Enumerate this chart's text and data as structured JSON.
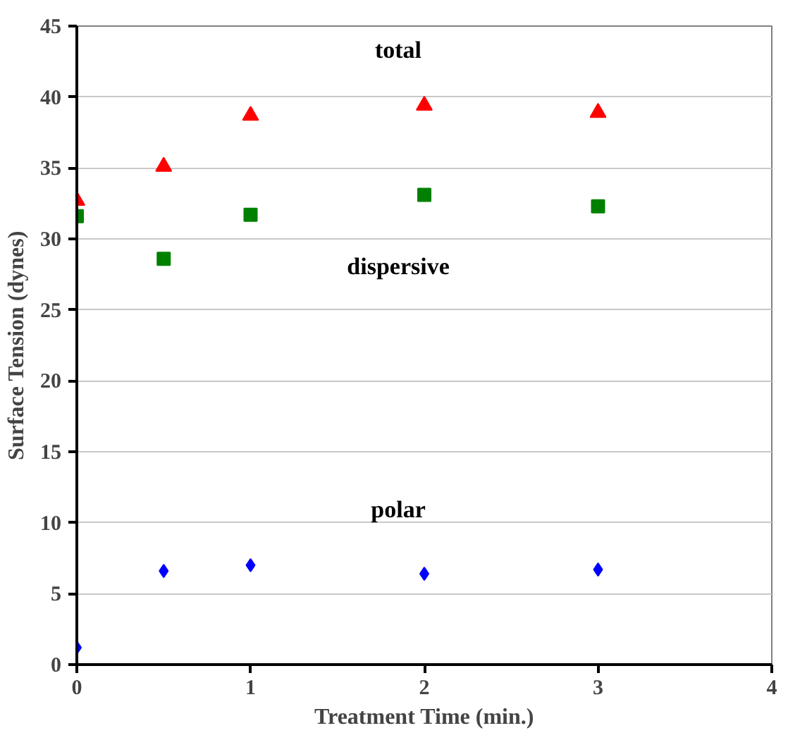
{
  "chart_data": {
    "type": "scatter",
    "xlabel": "Treatment Time (min.)",
    "ylabel": "Surface Tension (dynes)",
    "x": [
      0,
      0.5,
      1,
      2,
      3
    ],
    "series": [
      {
        "name": "total",
        "color": "#ff0000",
        "marker": "triangle",
        "values": [
          32.7,
          35.1,
          38.7,
          39.4,
          38.9
        ]
      },
      {
        "name": "dispersive",
        "color": "#008000",
        "marker": "square",
        "values": [
          31.6,
          28.6,
          31.7,
          33.1,
          32.3
        ]
      },
      {
        "name": "polar",
        "color": "#0000ff",
        "marker": "diamond",
        "values": [
          1.2,
          6.6,
          7.0,
          6.4,
          6.7
        ]
      }
    ],
    "xlim": [
      0,
      4
    ],
    "xticks": [
      0,
      1,
      2,
      3,
      4
    ],
    "ylim": [
      0,
      45
    ],
    "yticks": [
      0,
      5,
      10,
      15,
      20,
      25,
      30,
      35,
      40,
      45
    ],
    "grid": "y"
  }
}
